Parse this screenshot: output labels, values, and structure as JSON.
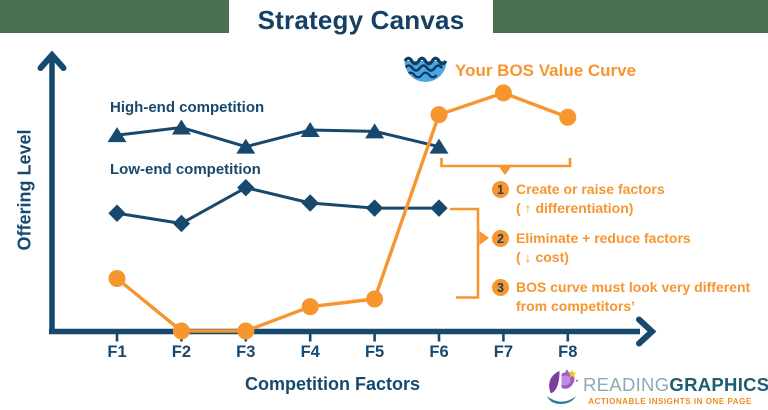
{
  "header": {
    "title": "Strategy Canvas"
  },
  "chart_data": {
    "type": "line",
    "title": "Strategy Canvas",
    "xlabel": "Competition Factors",
    "ylabel": "Offering Level",
    "categories": [
      "F1",
      "F2",
      "F3",
      "F4",
      "F5",
      "F6",
      "F7",
      "F8"
    ],
    "ylim": [
      0,
      10
    ],
    "grid": false,
    "legend_position": "inline-labels",
    "series": [
      {
        "name": "High-end competition",
        "marker": "triangle",
        "color": "#17496F",
        "values": [
          7.65,
          7.95,
          7.2,
          7.85,
          7.8,
          7.2,
          null,
          null
        ]
      },
      {
        "name": "Low-end competition",
        "marker": "diamond",
        "color": "#17496F",
        "values": [
          4.6,
          4.2,
          5.6,
          5.0,
          4.8,
          4.8,
          null,
          null
        ]
      },
      {
        "name": "Your BOS Value Curve",
        "marker": "circle",
        "color": "#F7952F",
        "values": [
          2.05,
          0,
          0,
          0.95,
          1.25,
          8.45,
          9.3,
          8.35
        ]
      }
    ],
    "annotations": [
      {
        "num": "1",
        "line1": "Create or raise factors",
        "line2": "( ↑ differentiation)"
      },
      {
        "num": "2",
        "line1": "Eliminate + reduce factors",
        "line2": "( ↓ cost)"
      },
      {
        "num": "3",
        "line1": "BOS curve must look very different",
        "line2": "from competitors’"
      }
    ]
  },
  "branding": {
    "name_light": "READING",
    "name_bold": "GRAPHICS",
    "tagline": "ACTIONABLE INSIGHTS IN ONE PAGE"
  },
  "colors": {
    "navy": "#17496F",
    "title_navy": "#153F63",
    "orange": "#F7952F",
    "band_green": "#4A7050",
    "wave_blue": "#4BA6E4",
    "wave_dark": "#123C5E"
  }
}
